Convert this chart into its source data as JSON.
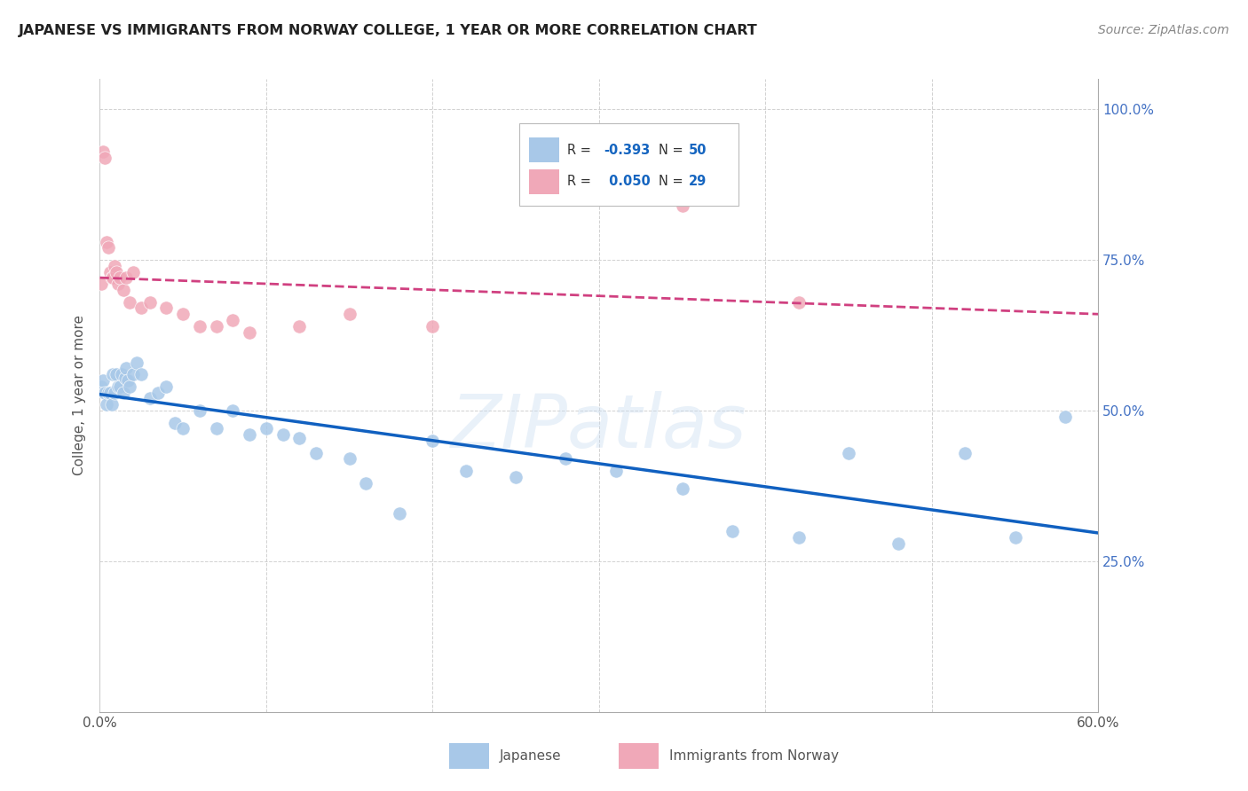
{
  "title": "JAPANESE VS IMMIGRANTS FROM NORWAY COLLEGE, 1 YEAR OR MORE CORRELATION CHART",
  "source": "Source: ZipAtlas.com",
  "ylabel": "College, 1 year or more",
  "xlim": [
    0.0,
    0.6
  ],
  "ylim": [
    0.0,
    1.05
  ],
  "yticks": [
    0.25,
    0.5,
    0.75,
    1.0
  ],
  "ytick_labels": [
    "25.0%",
    "50.0%",
    "75.0%",
    "100.0%"
  ],
  "xticks": [
    0.0,
    0.1,
    0.2,
    0.3,
    0.4,
    0.5,
    0.6
  ],
  "xtick_labels": [
    "0.0%",
    "",
    "",
    "",
    "",
    "",
    "60.0%"
  ],
  "watermark": "ZIPatlas",
  "blue_color": "#A8C8E8",
  "pink_color": "#F0A8B8",
  "line_blue": "#1060C0",
  "line_pink": "#D04080",
  "background_color": "#FFFFFF",
  "japanese_x": [
    0.001,
    0.002,
    0.003,
    0.004,
    0.005,
    0.006,
    0.007,
    0.008,
    0.009,
    0.01,
    0.011,
    0.012,
    0.013,
    0.014,
    0.015,
    0.016,
    0.017,
    0.018,
    0.02,
    0.022,
    0.025,
    0.03,
    0.035,
    0.04,
    0.045,
    0.05,
    0.06,
    0.07,
    0.08,
    0.09,
    0.1,
    0.11,
    0.12,
    0.13,
    0.15,
    0.16,
    0.18,
    0.2,
    0.22,
    0.25,
    0.28,
    0.31,
    0.35,
    0.38,
    0.42,
    0.45,
    0.48,
    0.52,
    0.55,
    0.58
  ],
  "japanese_y": [
    0.54,
    0.55,
    0.53,
    0.51,
    0.53,
    0.53,
    0.51,
    0.56,
    0.53,
    0.56,
    0.54,
    0.54,
    0.56,
    0.53,
    0.555,
    0.57,
    0.55,
    0.54,
    0.56,
    0.58,
    0.56,
    0.52,
    0.53,
    0.54,
    0.48,
    0.47,
    0.5,
    0.47,
    0.5,
    0.46,
    0.47,
    0.46,
    0.455,
    0.43,
    0.42,
    0.38,
    0.33,
    0.45,
    0.4,
    0.39,
    0.42,
    0.4,
    0.37,
    0.3,
    0.29,
    0.43,
    0.28,
    0.43,
    0.29,
    0.49
  ],
  "norway_x": [
    0.001,
    0.002,
    0.003,
    0.004,
    0.005,
    0.006,
    0.007,
    0.008,
    0.009,
    0.01,
    0.011,
    0.012,
    0.014,
    0.016,
    0.018,
    0.02,
    0.025,
    0.03,
    0.04,
    0.05,
    0.06,
    0.07,
    0.08,
    0.09,
    0.12,
    0.15,
    0.2,
    0.35,
    0.42
  ],
  "norway_y": [
    0.71,
    0.93,
    0.92,
    0.78,
    0.77,
    0.73,
    0.72,
    0.72,
    0.74,
    0.73,
    0.71,
    0.72,
    0.7,
    0.72,
    0.68,
    0.73,
    0.67,
    0.68,
    0.67,
    0.66,
    0.64,
    0.64,
    0.65,
    0.63,
    0.64,
    0.66,
    0.64,
    0.84,
    0.68
  ],
  "jp_intercept": 0.555,
  "jp_slope": -0.55,
  "no_intercept": 0.71,
  "no_slope": 0.08
}
